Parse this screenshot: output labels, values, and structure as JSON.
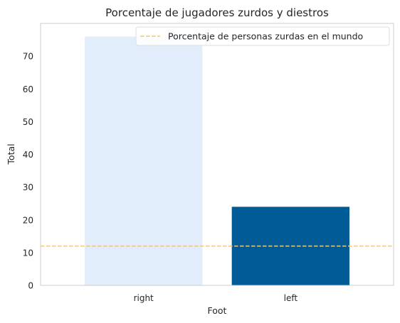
{
  "chart_data": {
    "type": "bar",
    "title": "Porcentaje de jugadores zurdos y diestros",
    "xlabel": "Foot",
    "ylabel": "Total",
    "categories": [
      "right",
      "left"
    ],
    "values": [
      76,
      24
    ],
    "ylim": [
      0,
      80
    ],
    "yticks": [
      0,
      10,
      20,
      30,
      40,
      50,
      60,
      70
    ],
    "grid": false,
    "bar_colors": [
      "#E1EDFB",
      "#005A96"
    ],
    "reference_line": {
      "value": 12,
      "label": "Porcentaje de personas zurdas en el mundo",
      "color": "#F0C878",
      "style": "dashed"
    },
    "legend_position": "top-right"
  }
}
